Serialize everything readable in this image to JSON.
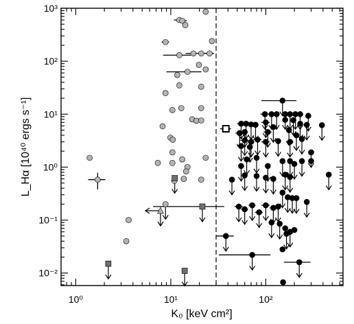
{
  "chart_data": {
    "type": "scatter",
    "xscale": "log",
    "yscale": "log",
    "xlim": [
      0.7,
      650
    ],
    "ylim": [
      0.0058,
      1000
    ],
    "x_ticks": [
      {
        "value": 1,
        "label": "10⁰"
      },
      {
        "value": 10,
        "label": "10¹"
      },
      {
        "value": 100,
        "label": "10²"
      }
    ],
    "y_ticks": [
      {
        "value": 0.01,
        "label": "10⁻²"
      },
      {
        "value": 0.1,
        "label": "10⁻¹"
      },
      {
        "value": 1,
        "label": "10⁰"
      },
      {
        "value": 10,
        "label": "10¹"
      },
      {
        "value": 100,
        "label": "10²"
      },
      {
        "value": 1000,
        "label": "10³"
      }
    ],
    "xlabel": "K₀ [keV cm²]",
    "ylabel": "L_Hα [10⁴⁰ ergs s⁻¹]",
    "reference_line": {
      "x": 30,
      "style": "dashed",
      "color": "#000000"
    },
    "colors": {
      "gray": "#b4b4b4",
      "black": "#000000",
      "square": "#6e6e6e"
    },
    "series": [
      {
        "marker": "circle",
        "color": "gray",
        "points": [
          {
            "x": 12.3,
            "y": 600,
            "xerr": 1.5
          },
          {
            "x": 13.2,
            "y": 580,
            "xerr": 1.5
          },
          {
            "x": 23.3,
            "y": 860,
            "xerr": 0.8
          },
          {
            "x": 14.2,
            "y": 480,
            "xerr": 0.8
          },
          {
            "x": 8.8,
            "y": 230,
            "xerr": 0.8
          },
          {
            "x": 27.1,
            "y": 240,
            "xerr": 0.8
          },
          {
            "x": 12.3,
            "y": 130,
            "xerr": 4
          },
          {
            "x": 17.3,
            "y": 140,
            "xerr": 3
          },
          {
            "x": 20.9,
            "y": 140,
            "xerr": 3
          },
          {
            "x": 25.6,
            "y": 140,
            "xerr": 3
          },
          {
            "x": 11.7,
            "y": 55
          },
          {
            "x": 15.0,
            "y": 63,
            "xerr": 6
          },
          {
            "x": 19.8,
            "y": 85
          },
          {
            "x": 23.3,
            "y": 70
          },
          {
            "x": 12.3,
            "y": 35
          },
          {
            "x": 20.9,
            "y": 33
          },
          {
            "x": 8.8,
            "y": 25
          },
          {
            "x": 10.4,
            "y": 12
          },
          {
            "x": 12.9,
            "y": 13
          },
          {
            "x": 20.9,
            "y": 13
          },
          {
            "x": 16.8,
            "y": 8
          },
          {
            "x": 18.6,
            "y": 7.5
          },
          {
            "x": 20.9,
            "y": 7.6
          },
          {
            "x": 8.2,
            "y": 5.9
          },
          {
            "x": 9.9,
            "y": 3.6
          },
          {
            "x": 10.5,
            "y": 3.3
          },
          {
            "x": 10.4,
            "y": 1.9
          },
          {
            "x": 13.2,
            "y": 1.4
          },
          {
            "x": 23.3,
            "y": 1.5
          },
          {
            "x": 7.3,
            "y": 1.2
          },
          {
            "x": 10.4,
            "y": 1.2
          },
          {
            "x": 15.0,
            "y": 1.0
          },
          {
            "x": 14.5,
            "y": 0.83
          },
          {
            "x": 10.9,
            "y": 0.55
          },
          {
            "x": 13.7,
            "y": 0.6
          },
          {
            "x": 20.9,
            "y": 0.58
          },
          {
            "x": 1.4,
            "y": 1.5
          },
          {
            "x": 1.7,
            "y": 0.58,
            "xerr": 0.35,
            "yerr": 0.2
          },
          {
            "x": 8.8,
            "y": 0.2
          },
          {
            "x": 3.6,
            "y": 0.1
          },
          {
            "x": 3.4,
            "y": 0.04
          }
        ]
      },
      {
        "marker": "triangle",
        "color": "gray",
        "points": [
          {
            "x": 7.8,
            "y": 0.15,
            "xupper": true
          }
        ]
      },
      {
        "marker": "circle",
        "color": "black",
        "points": [
          {
            "x": 150,
            "y": 18,
            "xerr": 60
          },
          {
            "x": 98,
            "y": 10,
            "xerr": 10
          },
          {
            "x": 115,
            "y": 10,
            "xerr": 10
          },
          {
            "x": 130,
            "y": 10,
            "xerr": 10
          },
          {
            "x": 160,
            "y": 10,
            "xerr": 10
          },
          {
            "x": 180,
            "y": 10,
            "xerr": 10
          },
          {
            "x": 205,
            "y": 10,
            "xerr": 10
          },
          {
            "x": 230,
            "y": 10,
            "xerr": 15
          },
          {
            "x": 280,
            "y": 9.3,
            "xerr": 20
          },
          {
            "x": 100,
            "y": 7,
            "xerr": 10
          },
          {
            "x": 160,
            "y": 7.8,
            "xerr": 10
          },
          {
            "x": 195,
            "y": 7.7,
            "xerr": 15
          },
          {
            "x": 230,
            "y": 6.6,
            "xerr": 15
          },
          {
            "x": 270,
            "y": 6.3,
            "xerr": 20
          },
          {
            "x": 55,
            "y": 6.6,
            "xerr": 5
          },
          {
            "x": 62,
            "y": 6.6,
            "xerr": 5
          },
          {
            "x": 70,
            "y": 6.4,
            "xerr": 6
          },
          {
            "x": 78,
            "y": 6.3,
            "xerr": 6
          },
          {
            "x": 53,
            "y": 4.4,
            "xerr": 5
          },
          {
            "x": 60,
            "y": 4.6,
            "xerr": 5
          },
          {
            "x": 105,
            "y": 4.6,
            "xerr": 10
          },
          {
            "x": 120,
            "y": 5.7,
            "xerr": 10
          },
          {
            "x": 175,
            "y": 5.0,
            "xerr": 10
          },
          {
            "x": 390,
            "y": 6.2,
            "xerr": 25
          },
          {
            "x": 60,
            "y": 3.2,
            "xerr": 6
          },
          {
            "x": 70,
            "y": 3.0,
            "xerr": 6
          },
          {
            "x": 82,
            "y": 3.3,
            "xerr": 8
          },
          {
            "x": 100,
            "y": 3.0,
            "xerr": 10
          },
          {
            "x": 135,
            "y": 3.1,
            "xerr": 10
          },
          {
            "x": 180,
            "y": 3.0,
            "xerr": 15
          },
          {
            "x": 210,
            "y": 4.0,
            "xerr": 15
          },
          {
            "x": 240,
            "y": 3.4,
            "xerr": 15
          },
          {
            "x": 55,
            "y": 2.5,
            "xerr": 5
          },
          {
            "x": 68,
            "y": 2.4,
            "xerr": 5
          },
          {
            "x": 300,
            "y": 1.9,
            "xerr": 20
          },
          {
            "x": 55,
            "y": 1.05
          },
          {
            "x": 63,
            "y": 1.4
          },
          {
            "x": 80,
            "y": 1.5
          },
          {
            "x": 105,
            "y": 1.05
          },
          {
            "x": 150,
            "y": 1.3
          },
          {
            "x": 180,
            "y": 1.3
          },
          {
            "x": 200,
            "y": 1.15
          },
          {
            "x": 240,
            "y": 1.3
          },
          {
            "x": 300,
            "y": 1.3
          },
          {
            "x": 60,
            "y": 0.7
          },
          {
            "x": 80,
            "y": 0.68
          },
          {
            "x": 100,
            "y": 0.63
          },
          {
            "x": 120,
            "y": 0.6
          },
          {
            "x": 160,
            "y": 0.72
          },
          {
            "x": 180,
            "y": 0.65
          },
          {
            "x": 460,
            "y": 0.72
          },
          {
            "x": 44,
            "y": 0.58
          },
          {
            "x": 150,
            "y": 0.33
          },
          {
            "x": 170,
            "y": 0.27
          },
          {
            "x": 190,
            "y": 0.26
          },
          {
            "x": 210,
            "y": 0.26
          },
          {
            "x": 270,
            "y": 0.22
          },
          {
            "x": 52,
            "y": 0.18,
            "xerr": 5
          },
          {
            "x": 60,
            "y": 0.16,
            "xerr": 5
          },
          {
            "x": 72,
            "y": 0.19,
            "xerr": 6
          },
          {
            "x": 85,
            "y": 0.14,
            "xerr": 8
          },
          {
            "x": 100,
            "y": 0.19,
            "xerr": 10
          },
          {
            "x": 120,
            "y": 0.17,
            "xerr": 10
          },
          {
            "x": 135,
            "y": 0.18,
            "xerr": 10
          },
          {
            "x": 115,
            "y": 0.09
          },
          {
            "x": 140,
            "y": 0.085
          },
          {
            "x": 160,
            "y": 0.07
          },
          {
            "x": 165,
            "y": 0.055
          },
          {
            "x": 180,
            "y": 0.06
          },
          {
            "x": 200,
            "y": 0.065
          },
          {
            "x": 38,
            "y": 0.05,
            "xerr": 8
          },
          {
            "x": 72,
            "y": 0.022,
            "xerr": 40
          },
          {
            "x": 150,
            "y": 0.028
          },
          {
            "x": 225,
            "y": 0.016,
            "xerr": 70
          },
          {
            "x": 152,
            "y": 0.0067,
            "xerr": 6
          }
        ]
      },
      {
        "marker": "square",
        "color": "square",
        "points": [
          {
            "x": 11.0,
            "y": 0.62
          },
          {
            "x": 21.5,
            "y": 0.18,
            "xerr": 15
          },
          {
            "x": 2.2,
            "y": 0.015
          },
          {
            "x": 14.0,
            "y": 0.011
          }
        ]
      }
    ],
    "open_squares": [
      {
        "x": 38,
        "y": 5.3,
        "xerr": 5
      }
    ],
    "upper_limit_arrows": [
      {
        "x": 11.0,
        "y": 0.62
      },
      {
        "x": 21.5,
        "y": 0.18
      },
      {
        "x": 2.2,
        "y": 0.015
      },
      {
        "x": 14.0,
        "y": 0.011
      },
      {
        "x": 7.8,
        "y": 0.15
      },
      {
        "x": 8.8,
        "y": 0.2
      },
      {
        "x": 150,
        "y": 18
      },
      {
        "x": 98,
        "y": 10
      },
      {
        "x": 115,
        "y": 10
      },
      {
        "x": 130,
        "y": 10
      },
      {
        "x": 160,
        "y": 10
      },
      {
        "x": 180,
        "y": 10
      },
      {
        "x": 205,
        "y": 10
      },
      {
        "x": 230,
        "y": 10
      },
      {
        "x": 280,
        "y": 9.3
      },
      {
        "x": 100,
        "y": 7
      },
      {
        "x": 195,
        "y": 7.7
      },
      {
        "x": 230,
        "y": 6.6
      },
      {
        "x": 270,
        "y": 6.3
      },
      {
        "x": 55,
        "y": 6.6
      },
      {
        "x": 62,
        "y": 6.6
      },
      {
        "x": 70,
        "y": 6.4
      },
      {
        "x": 78,
        "y": 6.3
      },
      {
        "x": 53,
        "y": 4.4
      },
      {
        "x": 60,
        "y": 4.6
      },
      {
        "x": 105,
        "y": 4.6
      },
      {
        "x": 120,
        "y": 5.7
      },
      {
        "x": 175,
        "y": 5.0
      },
      {
        "x": 390,
        "y": 6.2
      },
      {
        "x": 60,
        "y": 3.2
      },
      {
        "x": 70,
        "y": 3.0
      },
      {
        "x": 82,
        "y": 3.3
      },
      {
        "x": 100,
        "y": 3.0
      },
      {
        "x": 135,
        "y": 3.1
      },
      {
        "x": 180,
        "y": 3.0
      },
      {
        "x": 210,
        "y": 4.0
      },
      {
        "x": 240,
        "y": 3.4
      },
      {
        "x": 55,
        "y": 2.5
      },
      {
        "x": 68,
        "y": 2.4
      },
      {
        "x": 300,
        "y": 1.9
      },
      {
        "x": 55,
        "y": 1.05
      },
      {
        "x": 63,
        "y": 1.4
      },
      {
        "x": 80,
        "y": 1.5
      },
      {
        "x": 105,
        "y": 1.05
      },
      {
        "x": 150,
        "y": 1.3
      },
      {
        "x": 180,
        "y": 1.3
      },
      {
        "x": 200,
        "y": 1.15
      },
      {
        "x": 240,
        "y": 1.3
      },
      {
        "x": 60,
        "y": 0.7
      },
      {
        "x": 80,
        "y": 0.68
      },
      {
        "x": 100,
        "y": 0.63
      },
      {
        "x": 120,
        "y": 0.6
      },
      {
        "x": 160,
        "y": 0.72
      },
      {
        "x": 180,
        "y": 0.65
      },
      {
        "x": 460,
        "y": 0.72
      },
      {
        "x": 44,
        "y": 0.58
      },
      {
        "x": 150,
        "y": 0.33
      },
      {
        "x": 170,
        "y": 0.27
      },
      {
        "x": 190,
        "y": 0.26
      },
      {
        "x": 210,
        "y": 0.26
      },
      {
        "x": 270,
        "y": 0.22
      },
      {
        "x": 52,
        "y": 0.18
      },
      {
        "x": 60,
        "y": 0.16
      },
      {
        "x": 72,
        "y": 0.19
      },
      {
        "x": 85,
        "y": 0.14
      },
      {
        "x": 100,
        "y": 0.19
      },
      {
        "x": 120,
        "y": 0.17
      },
      {
        "x": 135,
        "y": 0.18
      },
      {
        "x": 115,
        "y": 0.09
      },
      {
        "x": 140,
        "y": 0.085
      },
      {
        "x": 165,
        "y": 0.055
      },
      {
        "x": 180,
        "y": 0.06
      },
      {
        "x": 38,
        "y": 0.05
      },
      {
        "x": 72,
        "y": 0.022
      },
      {
        "x": 225,
        "y": 0.016
      }
    ]
  }
}
